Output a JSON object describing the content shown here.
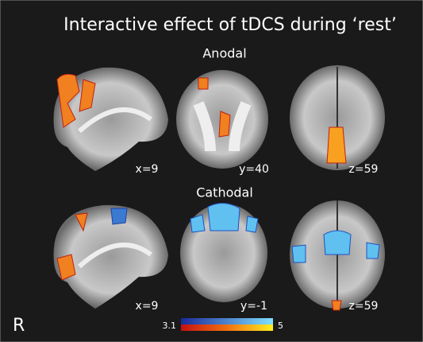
{
  "title": "Interactive effect of tDCS during ‘rest’",
  "rows": [
    {
      "label": "Anodal",
      "panels": [
        {
          "coord": "x=9"
        },
        {
          "coord": "y=40"
        },
        {
          "coord": "z=59"
        }
      ]
    },
    {
      "label": "Cathodal",
      "panels": [
        {
          "coord": "x=9"
        },
        {
          "coord": "y=-1"
        },
        {
          "coord": "z=59"
        }
      ]
    }
  ],
  "side": "R",
  "colorbar": {
    "min": "3.1",
    "max": "5"
  }
}
